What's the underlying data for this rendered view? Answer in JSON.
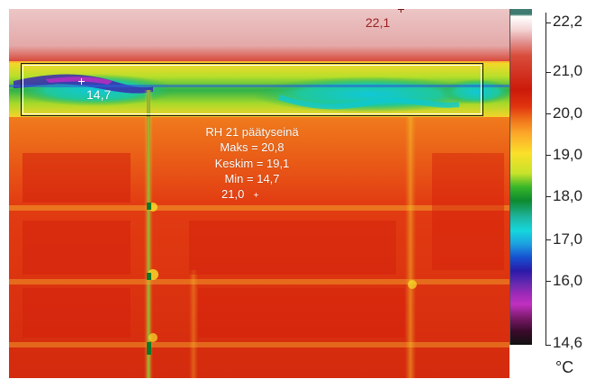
{
  "thermal_image": {
    "roi": {
      "name": "RH 21 päätyseinä",
      "max_label": "Maks = 20,8",
      "avg_label": "Keskim = 19,1",
      "min_label": "Min = 14,7"
    },
    "spots": [
      {
        "label": "22,1"
      },
      {
        "label": "14,7"
      },
      {
        "label": "21,0"
      }
    ]
  },
  "color_scale": {
    "max_label": "22,2",
    "min_label": "14,6",
    "ticks": [
      "21,0",
      "20,0",
      "19,0",
      "18,0",
      "17,0",
      "16,0"
    ],
    "unit": "°C"
  }
}
